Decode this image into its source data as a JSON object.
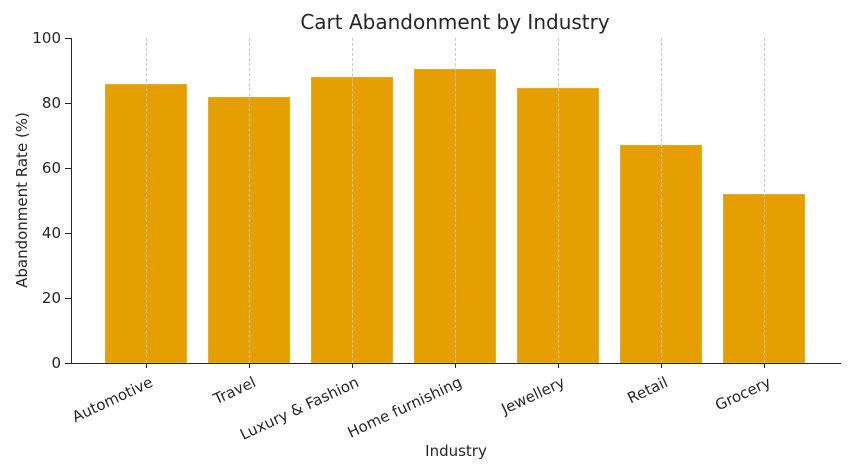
{
  "chart_data": {
    "type": "bar",
    "title": "Cart Abandonment by Industry",
    "xlabel": "Industry",
    "ylabel": "Abandonment Rate (%)",
    "categories": [
      "Automotive",
      "Travel",
      "Luxury & Fashion",
      "Home furnishing",
      "Jewellery",
      "Retail",
      "Grocery"
    ],
    "values": [
      86,
      82,
      88,
      90.5,
      84.5,
      67,
      52
    ],
    "ylim": [
      0,
      100
    ],
    "yticks": [
      "0",
      "20",
      "40",
      "60",
      "80",
      "100"
    ],
    "grid": "vertical dashed at category ticks",
    "bar_color": "#e69f00",
    "legend": null
  }
}
